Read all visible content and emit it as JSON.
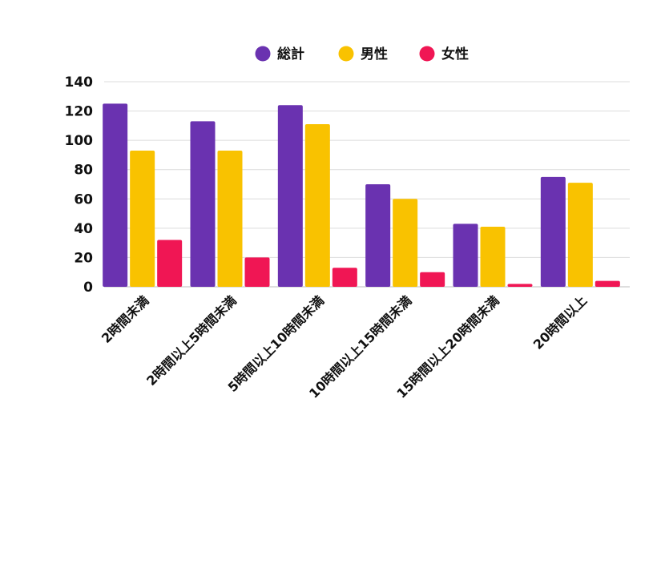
{
  "chart_data": {
    "type": "bar",
    "title": "",
    "xlabel": "",
    "ylabel": "",
    "categories": [
      "2時間未満",
      "2時間以上5時間未満",
      "5時間以上10時間未満",
      "10時間以上15時間未満",
      "15時間以上20時間未満",
      "20時間以上"
    ],
    "series": [
      {
        "name": "総計",
        "color": "#6a32b0",
        "values": [
          125,
          113,
          124,
          70,
          43,
          75
        ]
      },
      {
        "name": "男性",
        "color": "#f9c200",
        "values": [
          93,
          93,
          111,
          60,
          41,
          71
        ]
      },
      {
        "name": "女性",
        "color": "#f01654",
        "values": [
          32,
          20,
          13,
          10,
          2,
          4
        ]
      }
    ],
    "ylim": [
      0,
      140
    ],
    "yticks": [
      0,
      20,
      40,
      60,
      80,
      100,
      120,
      140
    ],
    "grid": true,
    "legend_position": "top-center"
  }
}
